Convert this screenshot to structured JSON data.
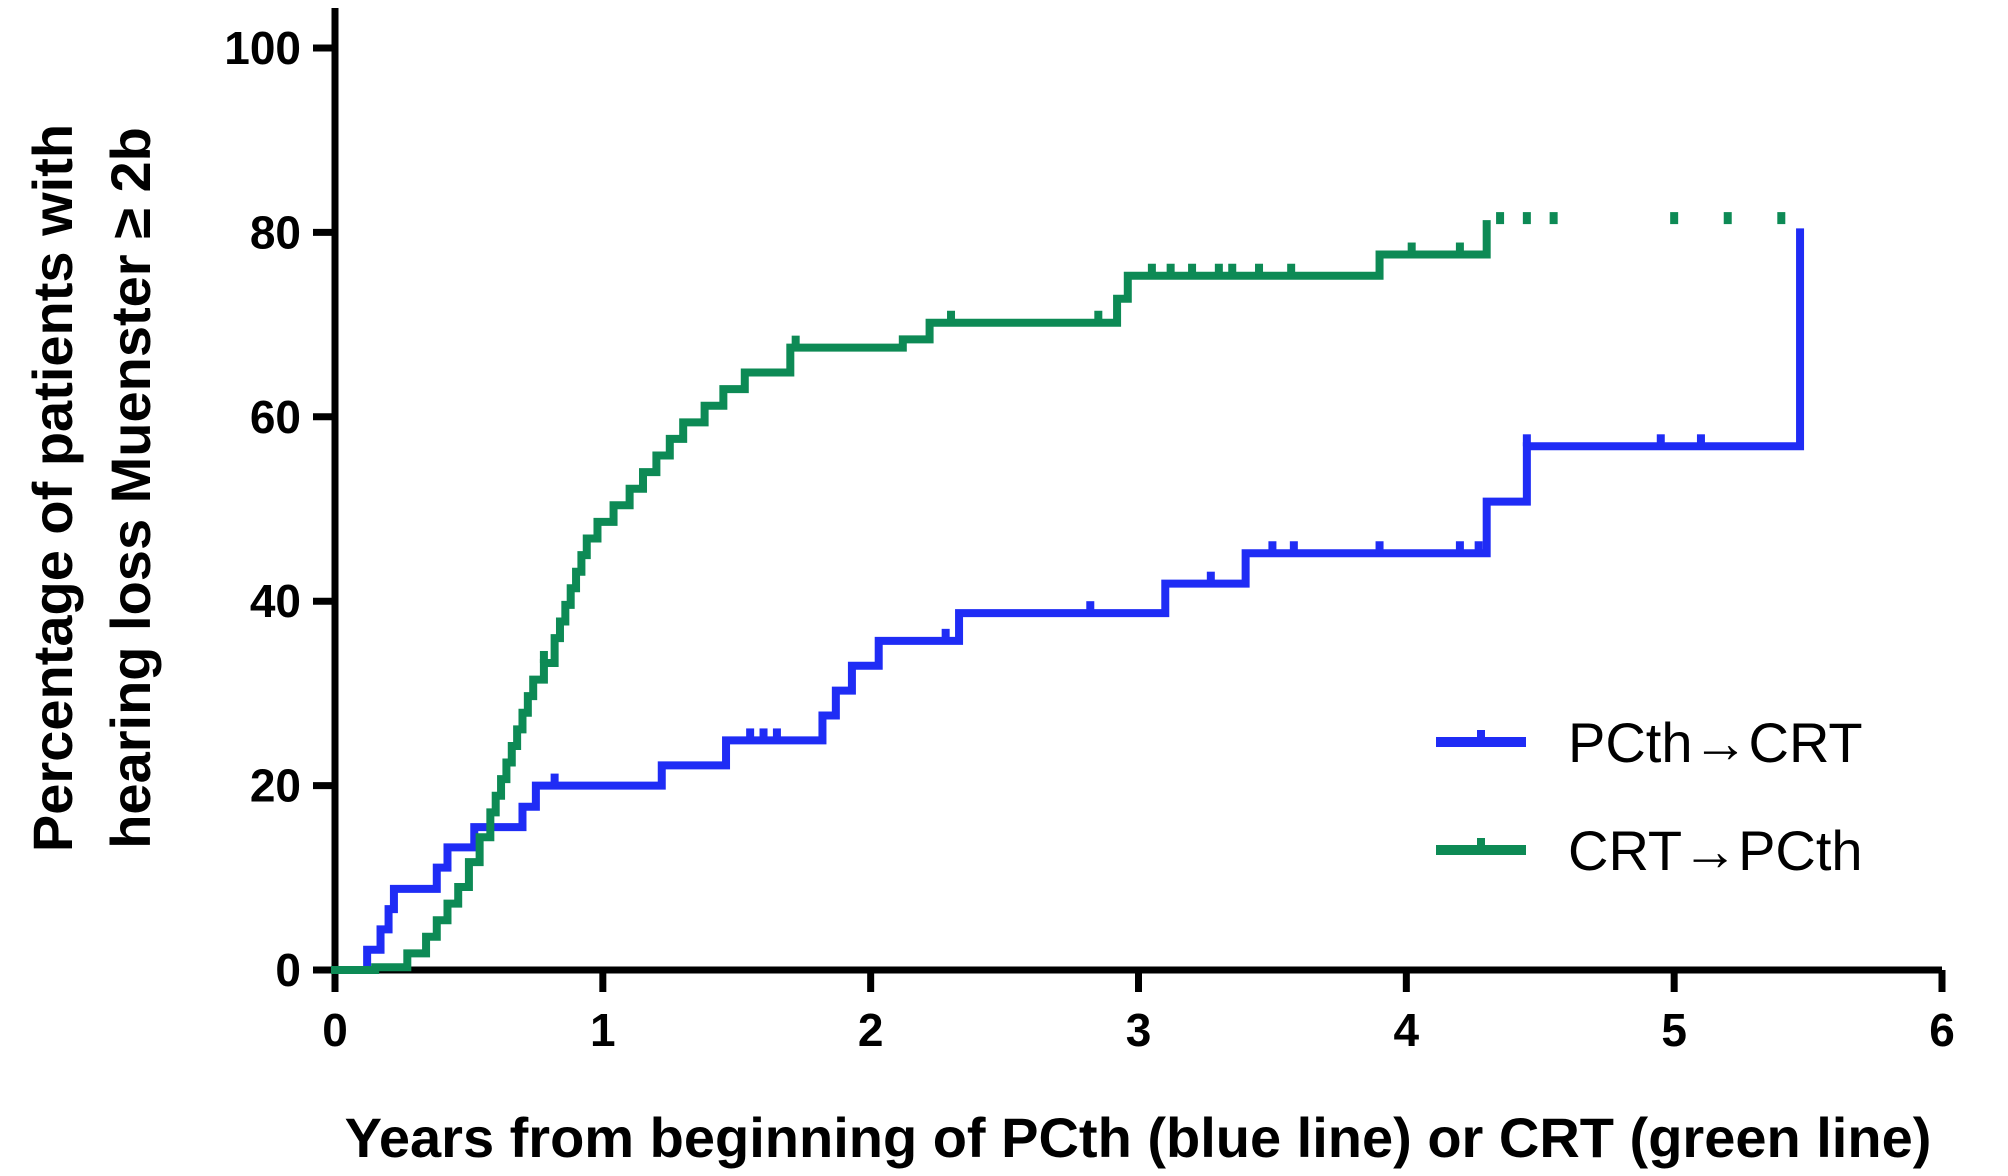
{
  "chart_data": {
    "type": "line",
    "title": "",
    "xlabel": "Years from beginning of PCth (blue line) or CRT (green line)",
    "ylabel_lines": [
      "Percentage of patients with",
      "hearing loss Muenster ≥ 2b"
    ],
    "xlim": [
      0,
      6
    ],
    "ylim": [
      0,
      100
    ],
    "xticks": [
      0,
      1,
      2,
      3,
      4,
      5,
      6
    ],
    "yticks": [
      0,
      20,
      40,
      60,
      80,
      100
    ],
    "grid": false,
    "legend_placement": "bottom-right",
    "series": [
      {
        "name": "PCth→CRT",
        "color": "#1f2cf5",
        "step": true,
        "x": [
          0,
          0.12,
          0.17,
          0.2,
          0.22,
          0.3,
          0.38,
          0.42,
          0.52,
          0.7,
          0.75,
          1.22,
          1.46,
          1.82,
          1.87,
          1.93,
          2.03,
          2.33,
          3.1,
          3.4,
          4.3,
          4.45,
          5.47
        ],
        "y": [
          0,
          2.2,
          4.4,
          6.6,
          8.8,
          8.8,
          11.1,
          13.3,
          15.5,
          17.7,
          20,
          22.2,
          24.9,
          27.6,
          30.3,
          33.0,
          35.7,
          38.7,
          41.9,
          45.2,
          50.8,
          56.8,
          80
        ],
        "censor_x": [
          0.82,
          1.55,
          1.6,
          1.65,
          2.28,
          2.82,
          3.27,
          3.5,
          3.58,
          3.9,
          4.2,
          4.27,
          4.45,
          4.95,
          5.1
        ]
      },
      {
        "name": "CRT→PCth",
        "color": "#0d8a55",
        "step": true,
        "x": [
          0,
          0.15,
          0.27,
          0.34,
          0.38,
          0.42,
          0.46,
          0.5,
          0.54,
          0.58,
          0.6,
          0.62,
          0.64,
          0.66,
          0.68,
          0.7,
          0.72,
          0.74,
          0.78,
          0.82,
          0.84,
          0.86,
          0.88,
          0.9,
          0.92,
          0.94,
          0.98,
          1.04,
          1.1,
          1.15,
          1.2,
          1.25,
          1.3,
          1.38,
          1.45,
          1.53,
          1.7,
          2.12,
          2.22,
          2.92,
          2.96,
          3.9,
          4.3
        ],
        "y": [
          0,
          0.3,
          1.8,
          3.6,
          5.4,
          7.2,
          9,
          11.7,
          14.4,
          17.1,
          18.9,
          20.7,
          22.5,
          24.3,
          26.1,
          27.9,
          29.7,
          31.5,
          33.3,
          36.0,
          37.8,
          39.6,
          41.4,
          43.2,
          45.0,
          46.8,
          48.6,
          50.4,
          52.2,
          54.0,
          55.8,
          57.6,
          59.4,
          61.2,
          63.0,
          64.8,
          67.5,
          68.4,
          70.2,
          72.8,
          75.3,
          77.6,
          80.9
        ],
        "censor_x": [
          0.78,
          1.72,
          2.3,
          2.85,
          3.05,
          3.12,
          3.2,
          3.3,
          3.35,
          3.45,
          3.57,
          4.02,
          4.2,
          4.35,
          4.45,
          4.55,
          5.0,
          5.2,
          5.4
        ]
      }
    ]
  }
}
